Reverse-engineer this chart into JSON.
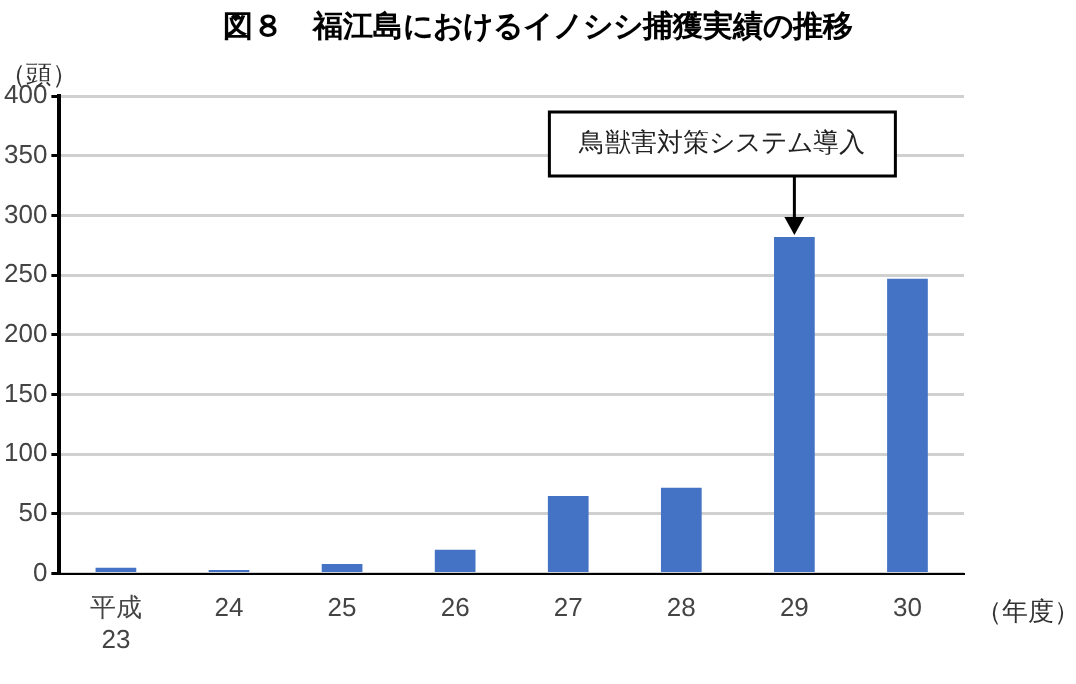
{
  "chart_data": {
    "type": "bar",
    "title": "図８　福江島におけるイノシシ捕獲実績の推移",
    "xlabel": "（年度）",
    "ylabel": "（頭）",
    "categories": [
      "平成\n23",
      "24",
      "25",
      "26",
      "27",
      "28",
      "29",
      "30"
    ],
    "values": [
      5,
      3,
      8,
      20,
      65,
      72,
      282,
      247
    ],
    "color": "#4472c4",
    "ylim": [
      0,
      400
    ],
    "yticks": [
      0,
      50,
      100,
      150,
      200,
      250,
      300,
      350,
      400
    ],
    "grid": "y",
    "legend": false,
    "annotations": [
      {
        "text": "鳥獣害対策システム導入",
        "x": "29",
        "y": 282
      }
    ]
  }
}
